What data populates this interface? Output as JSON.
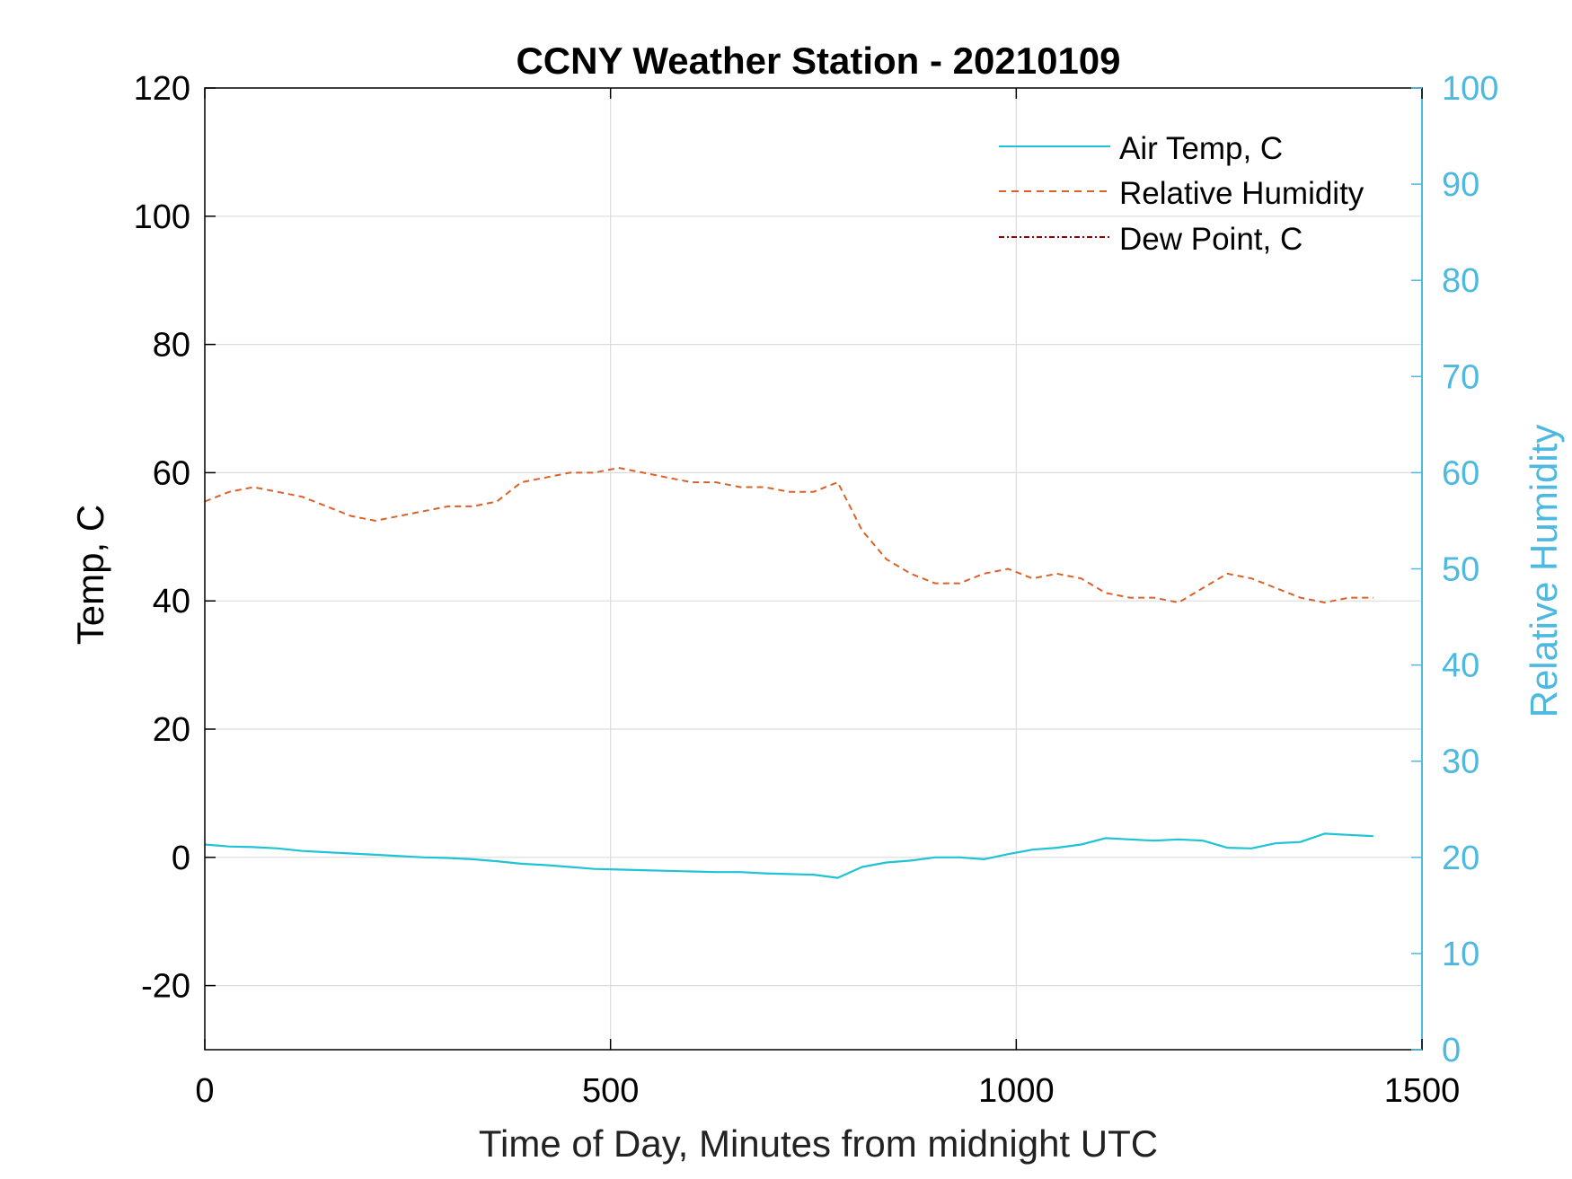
{
  "chart_data": {
    "type": "line",
    "title": "CCNY Weather Station - 20210109",
    "xlabel": "Time of Day, Minutes from midnight UTC",
    "ylabel_left": "Temp, C",
    "ylabel_right": "Relative Humidity",
    "xlim": [
      0,
      1500
    ],
    "ylim_left": [
      -30,
      120
    ],
    "ylim_right": [
      0,
      100
    ],
    "x_ticks": [
      0,
      500,
      1000,
      1500
    ],
    "y_ticks_left": [
      -20,
      0,
      20,
      40,
      60,
      80,
      100,
      120
    ],
    "y_ticks_right": [
      0,
      10,
      20,
      30,
      40,
      50,
      60,
      70,
      80,
      90,
      100
    ],
    "grid": true,
    "legend_position": "top-right",
    "colors": {
      "air_temp": "#1fc3d6",
      "relative_humidity": "#d9622b",
      "dew_point": "#8b0000",
      "right_axis": "#4db9e0",
      "grid": "#dcdcdc",
      "axis": "#000000"
    },
    "series": [
      {
        "name": "Air Temp, C",
        "axis": "left",
        "style": "solid",
        "x": [
          0,
          30,
          60,
          90,
          120,
          150,
          180,
          210,
          240,
          270,
          300,
          330,
          360,
          390,
          420,
          450,
          480,
          510,
          540,
          570,
          600,
          630,
          660,
          690,
          720,
          750,
          780,
          810,
          840,
          870,
          900,
          930,
          960,
          990,
          1020,
          1050,
          1080,
          1110,
          1140,
          1170,
          1200,
          1230,
          1260,
          1290,
          1320,
          1350,
          1380,
          1410,
          1440
        ],
        "y": [
          2.0,
          1.7,
          1.6,
          1.4,
          1.0,
          0.8,
          0.6,
          0.4,
          0.2,
          0.0,
          -0.1,
          -0.3,
          -0.6,
          -1.0,
          -1.2,
          -1.5,
          -1.8,
          -1.9,
          -2.0,
          -2.1,
          -2.2,
          -2.3,
          -2.3,
          -2.5,
          -2.6,
          -2.7,
          -3.2,
          -1.5,
          -0.8,
          -0.5,
          0.0,
          0.0,
          -0.3,
          0.5,
          1.2,
          1.5,
          2.0,
          3.0,
          2.8,
          2.6,
          2.8,
          2.6,
          1.5,
          1.4,
          2.2,
          2.4,
          3.7,
          3.5,
          3.3
        ]
      },
      {
        "name": "Relative Humidity",
        "axis": "right",
        "style": "dashed",
        "x": [
          0,
          30,
          60,
          90,
          120,
          150,
          180,
          210,
          240,
          270,
          300,
          330,
          360,
          390,
          420,
          450,
          480,
          510,
          540,
          570,
          600,
          630,
          660,
          690,
          720,
          750,
          780,
          810,
          840,
          870,
          900,
          930,
          960,
          990,
          1020,
          1050,
          1080,
          1110,
          1140,
          1170,
          1200,
          1230,
          1260,
          1290,
          1320,
          1350,
          1380,
          1410,
          1440
        ],
        "y": [
          57,
          58,
          58.5,
          58,
          57.5,
          56.5,
          55.5,
          55,
          55.5,
          56,
          56.5,
          56.5,
          57,
          59,
          59.5,
          60,
          60,
          60.5,
          60,
          59.5,
          59,
          59,
          58.5,
          58.5,
          58,
          58,
          59,
          54,
          51,
          49.5,
          48.5,
          48.5,
          49.5,
          50,
          49,
          49.5,
          49,
          47.5,
          47,
          47,
          46.5,
          48,
          49.5,
          49,
          48,
          47,
          46.5,
          47,
          47
        ]
      },
      {
        "name": "Dew Point, C",
        "axis": "left",
        "style": "dash-dot",
        "x": [],
        "y": []
      }
    ]
  }
}
